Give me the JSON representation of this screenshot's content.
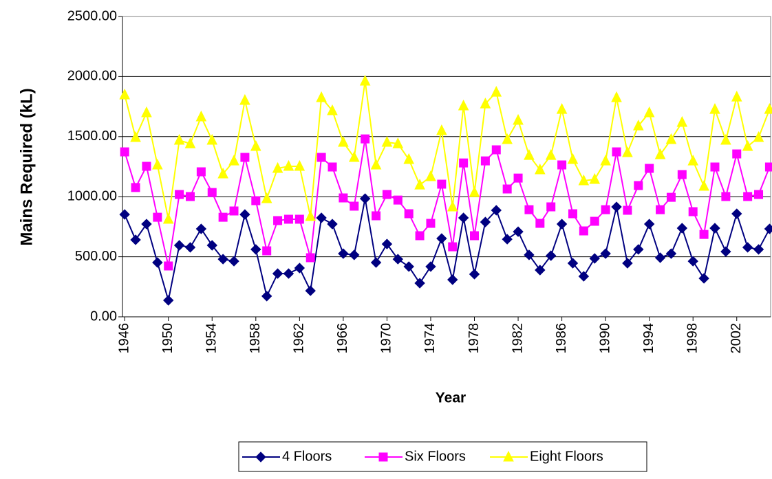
{
  "chart_data": {
    "type": "line",
    "x_label": "Year",
    "y_label": "Mains Required (kL)",
    "x": [
      1946,
      1947,
      1948,
      1949,
      1950,
      1951,
      1952,
      1953,
      1954,
      1955,
      1956,
      1957,
      1958,
      1959,
      1960,
      1961,
      1962,
      1963,
      1964,
      1965,
      1966,
      1967,
      1968,
      1969,
      1970,
      1971,
      1972,
      1973,
      1974,
      1975,
      1976,
      1977,
      1978,
      1979,
      1980,
      1981,
      1982,
      1983,
      1984,
      1985,
      1986,
      1987,
      1988,
      1989,
      1990,
      1991,
      1992,
      1993,
      1994,
      1995,
      1996,
      1997,
      1998,
      1999,
      2000,
      2001,
      2002,
      2003,
      2004,
      2005
    ],
    "xlim": [
      1945.8,
      2005.1
    ],
    "xticks": [
      1946,
      1950,
      1954,
      1958,
      1962,
      1966,
      1970,
      1974,
      1978,
      1982,
      1986,
      1990,
      1994,
      1998,
      2002
    ],
    "ylim": [
      0,
      2500
    ],
    "yticks": [
      {
        "value": 0,
        "label": "0.00"
      },
      {
        "value": 500,
        "label": "500.00"
      },
      {
        "value": 1000,
        "label": "1000.00"
      },
      {
        "value": 1500,
        "label": "1500.00"
      },
      {
        "value": 2000,
        "label": "2000.00"
      },
      {
        "value": 2500,
        "label": "2500.00"
      }
    ],
    "grid": true,
    "legend": "bottom",
    "series": [
      {
        "name": "4 Floors",
        "color": "#000080",
        "marker": "diamond",
        "values": [
          852,
          641,
          772,
          452,
          137,
          595,
          578,
          732,
          595,
          480,
          463,
          852,
          561,
          172,
          360,
          360,
          406,
          217,
          824,
          772,
          526,
          515,
          984,
          452,
          606,
          480,
          418,
          280,
          418,
          652,
          309,
          824,
          355,
          789,
          887,
          646,
          709,
          515,
          389,
          509,
          772,
          446,
          337,
          486,
          526,
          915,
          446,
          561,
          772,
          492,
          526,
          738,
          463,
          320,
          738,
          543,
          858,
          578,
          561,
          732
        ]
      },
      {
        "name": "Six Floors",
        "color": "#ff00ff",
        "marker": "square",
        "values": [
          1373,
          1076,
          1253,
          829,
          423,
          1018,
          1001,
          1207,
          1035,
          829,
          881,
          1327,
          967,
          549,
          801,
          812,
          812,
          492,
          1327,
          1247,
          990,
          921,
          1481,
          841,
          1018,
          972,
          858,
          675,
          778,
          1104,
          583,
          1281,
          675,
          1298,
          1390,
          1064,
          1155,
          892,
          778,
          915,
          1264,
          858,
          715,
          795,
          892,
          1373,
          887,
          1093,
          1236,
          892,
          995,
          1184,
          875,
          686,
          1247,
          1001,
          1356,
          1001,
          1018,
          1247
        ]
      },
      {
        "name": "Eight Floors",
        "color": "#ffff00",
        "marker": "triangle",
        "values": [
          1848,
          1493,
          1699,
          1264,
          812,
          1470,
          1441,
          1665,
          1470,
          1190,
          1298,
          1802,
          1419,
          984,
          1236,
          1253,
          1253,
          835,
          1825,
          1716,
          1453,
          1327,
          1962,
          1264,
          1453,
          1441,
          1310,
          1098,
          1167,
          1550,
          915,
          1756,
          1035,
          1773,
          1870,
          1476,
          1636,
          1344,
          1224,
          1344,
          1727,
          1310,
          1133,
          1144,
          1298,
          1825,
          1367,
          1590,
          1699,
          1350,
          1476,
          1619,
          1298,
          1087,
          1727,
          1470,
          1830,
          1419,
          1493,
          1727
        ]
      }
    ]
  }
}
